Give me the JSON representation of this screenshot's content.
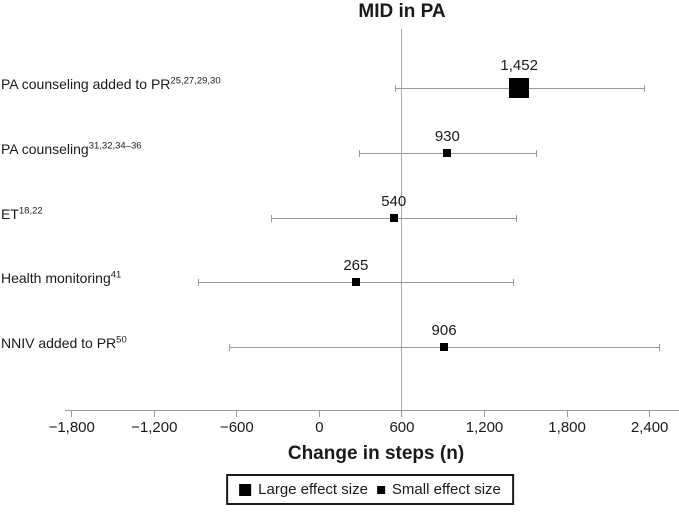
{
  "chart_data": {
    "type": "forest",
    "title": "MID in PA",
    "xlabel": "Change in steps (n)",
    "x_ticks": [
      -1800,
      -1200,
      -600,
      0,
      600,
      1200,
      1800,
      2400
    ],
    "x_tick_labels": [
      "−1,800",
      "−1,200",
      "−600",
      "0",
      "600",
      "1,200",
      "1,800",
      "2,400"
    ],
    "xlim": [
      -1850,
      2610
    ],
    "reference_line_x": 600,
    "grid": "off",
    "rows": [
      {
        "label": "PA counseling added to PR",
        "refs": "25,27,29,30",
        "value": 1452,
        "value_label": "1,452",
        "ci_low": 555,
        "ci_high": 2365,
        "effect": "large"
      },
      {
        "label": "PA counseling",
        "refs": "31,32,34–36",
        "value": 930,
        "value_label": "930",
        "ci_low": 295,
        "ci_high": 1580,
        "effect": "small"
      },
      {
        "label": "ET",
        "refs": "18,22",
        "value": 540,
        "value_label": "540",
        "ci_low": -350,
        "ci_high": 1435,
        "effect": "small"
      },
      {
        "label": "Health monitoring",
        "refs": "41",
        "value": 265,
        "value_label": "265",
        "ci_low": -880,
        "ci_high": 1410,
        "effect": "small"
      },
      {
        "label": "NNIV added to PR",
        "refs": "50",
        "value": 906,
        "value_label": "906",
        "ci_low": -655,
        "ci_high": 2470,
        "effect": "small"
      }
    ],
    "legend": {
      "position": "bottom-center",
      "items": [
        {
          "label": "Large effect size",
          "marker": "large-square"
        },
        {
          "label": "Small effect size",
          "marker": "small-square"
        }
      ]
    },
    "colors": {
      "marker": "#000000",
      "error_bar": "#999999",
      "axis": "#999999",
      "reference_line": "#a9a9a9",
      "text": "#1a1a1a"
    }
  }
}
